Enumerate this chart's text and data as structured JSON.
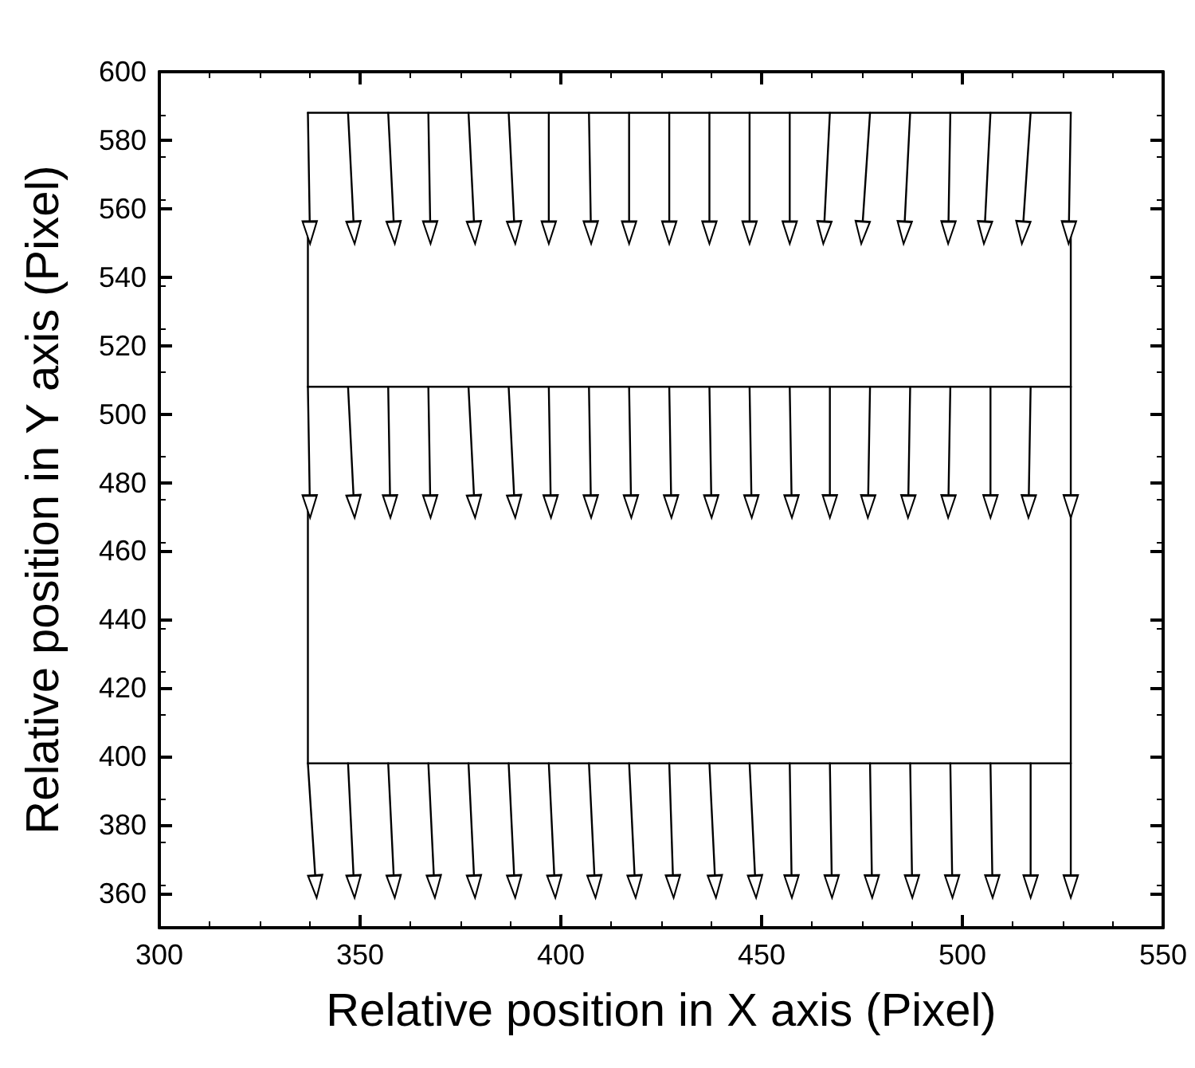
{
  "chart_data": {
    "type": "line",
    "xlabel": "Relative position in X axis (Pixel)",
    "ylabel": "Relative position in Y axis (Pixel)",
    "xlim": [
      300,
      550
    ],
    "xticks": [
      300,
      350,
      400,
      450,
      500,
      550
    ],
    "ylim": [
      350,
      600
    ],
    "yticks": [
      360,
      380,
      400,
      420,
      440,
      460,
      480,
      500,
      520,
      540,
      560,
      580,
      600
    ],
    "grid": false,
    "color": "#000000",
    "line_style": "solid",
    "series": [
      {
        "x": [
          337,
          527
        ],
        "values": [
          588,
          588
        ]
      },
      {
        "x": [
          337,
          527
        ],
        "values": [
          508,
          508
        ]
      },
      {
        "x": [
          337,
          527
        ],
        "values": [
          398,
          398
        ]
      },
      {
        "x": [
          337,
          337.5
        ],
        "values": [
          588,
          553
        ],
        "marker": "triangle"
      },
      {
        "x": [
          347,
          348.5
        ],
        "values": [
          588,
          553
        ],
        "marker": "triangle"
      },
      {
        "x": [
          357,
          358.5
        ],
        "values": [
          588,
          553
        ],
        "marker": "triangle"
      },
      {
        "x": [
          367,
          367.5
        ],
        "values": [
          588,
          553
        ],
        "marker": "triangle"
      },
      {
        "x": [
          377,
          378.5
        ],
        "values": [
          588,
          553
        ],
        "marker": "triangle"
      },
      {
        "x": [
          387,
          388.5
        ],
        "values": [
          588,
          553
        ],
        "marker": "triangle"
      },
      {
        "x": [
          397,
          397
        ],
        "values": [
          588,
          553
        ],
        "marker": "triangle"
      },
      {
        "x": [
          407,
          407.5
        ],
        "values": [
          588,
          553
        ],
        "marker": "triangle"
      },
      {
        "x": [
          417,
          417
        ],
        "values": [
          588,
          553
        ],
        "marker": "triangle"
      },
      {
        "x": [
          427,
          427
        ],
        "values": [
          588,
          553
        ],
        "marker": "triangle"
      },
      {
        "x": [
          437,
          437
        ],
        "values": [
          588,
          553
        ],
        "marker": "triangle"
      },
      {
        "x": [
          447,
          447
        ],
        "values": [
          588,
          553
        ],
        "marker": "triangle"
      },
      {
        "x": [
          457,
          457
        ],
        "values": [
          588,
          553
        ],
        "marker": "triangle"
      },
      {
        "x": [
          467,
          465.5
        ],
        "values": [
          588,
          553
        ],
        "marker": "triangle"
      },
      {
        "x": [
          477,
          475
        ],
        "values": [
          588,
          553
        ],
        "marker": "triangle"
      },
      {
        "x": [
          487,
          485.5
        ],
        "values": [
          588,
          553
        ],
        "marker": "triangle"
      },
      {
        "x": [
          497,
          496.5
        ],
        "values": [
          588,
          553
        ],
        "marker": "triangle"
      },
      {
        "x": [
          507,
          505.5
        ],
        "values": [
          588,
          553
        ],
        "marker": "triangle"
      },
      {
        "x": [
          517,
          515
        ],
        "values": [
          588,
          553
        ],
        "marker": "triangle"
      },
      {
        "x": [
          527,
          526.5
        ],
        "values": [
          588,
          553
        ],
        "marker": "triangle"
      },
      {
        "x": [
          337,
          337.5
        ],
        "values": [
          508,
          473
        ],
        "marker": "triangle"
      },
      {
        "x": [
          347,
          348.5
        ],
        "values": [
          508,
          473
        ],
        "marker": "triangle"
      },
      {
        "x": [
          357,
          357.5
        ],
        "values": [
          508,
          473
        ],
        "marker": "triangle"
      },
      {
        "x": [
          367,
          367.5
        ],
        "values": [
          508,
          473
        ],
        "marker": "triangle"
      },
      {
        "x": [
          377,
          378.5
        ],
        "values": [
          508,
          473
        ],
        "marker": "triangle"
      },
      {
        "x": [
          387,
          388.5
        ],
        "values": [
          508,
          473
        ],
        "marker": "triangle"
      },
      {
        "x": [
          397,
          397.5
        ],
        "values": [
          508,
          473
        ],
        "marker": "triangle"
      },
      {
        "x": [
          407,
          407.5
        ],
        "values": [
          508,
          473
        ],
        "marker": "triangle"
      },
      {
        "x": [
          417,
          417.5
        ],
        "values": [
          508,
          473
        ],
        "marker": "triangle"
      },
      {
        "x": [
          427,
          427.5
        ],
        "values": [
          508,
          473
        ],
        "marker": "triangle"
      },
      {
        "x": [
          437,
          437.5
        ],
        "values": [
          508,
          473
        ],
        "marker": "triangle"
      },
      {
        "x": [
          447,
          447.5
        ],
        "values": [
          508,
          473
        ],
        "marker": "triangle"
      },
      {
        "x": [
          457,
          457.5
        ],
        "values": [
          508,
          473
        ],
        "marker": "triangle"
      },
      {
        "x": [
          467,
          467
        ],
        "values": [
          508,
          473
        ],
        "marker": "triangle"
      },
      {
        "x": [
          477,
          476.5
        ],
        "values": [
          508,
          473
        ],
        "marker": "triangle"
      },
      {
        "x": [
          487,
          486.5
        ],
        "values": [
          508,
          473
        ],
        "marker": "triangle"
      },
      {
        "x": [
          497,
          496.5
        ],
        "values": [
          508,
          473
        ],
        "marker": "triangle"
      },
      {
        "x": [
          507,
          507
        ],
        "values": [
          508,
          473
        ],
        "marker": "triangle"
      },
      {
        "x": [
          517,
          516.5
        ],
        "values": [
          508,
          473
        ],
        "marker": "triangle"
      },
      {
        "x": [
          527,
          527
        ],
        "values": [
          508,
          473
        ],
        "marker": "triangle"
      },
      {
        "x": [
          337,
          339
        ],
        "values": [
          398,
          362
        ],
        "marker": "triangle"
      },
      {
        "x": [
          347,
          348.5
        ],
        "values": [
          398,
          362
        ],
        "marker": "triangle"
      },
      {
        "x": [
          357,
          358.5
        ],
        "values": [
          398,
          362
        ],
        "marker": "triangle"
      },
      {
        "x": [
          367,
          368.5
        ],
        "values": [
          398,
          362
        ],
        "marker": "triangle"
      },
      {
        "x": [
          377,
          378.5
        ],
        "values": [
          398,
          362
        ],
        "marker": "triangle"
      },
      {
        "x": [
          387,
          388.5
        ],
        "values": [
          398,
          362
        ],
        "marker": "triangle"
      },
      {
        "x": [
          397,
          398.5
        ],
        "values": [
          398,
          362
        ],
        "marker": "triangle"
      },
      {
        "x": [
          407,
          408.5
        ],
        "values": [
          398,
          362
        ],
        "marker": "triangle"
      },
      {
        "x": [
          417,
          418.5
        ],
        "values": [
          398,
          362
        ],
        "marker": "triangle"
      },
      {
        "x": [
          427,
          428
        ],
        "values": [
          398,
          362
        ],
        "marker": "triangle"
      },
      {
        "x": [
          437,
          438.5
        ],
        "values": [
          398,
          362
        ],
        "marker": "triangle"
      },
      {
        "x": [
          447,
          448.5
        ],
        "values": [
          398,
          362
        ],
        "marker": "triangle"
      },
      {
        "x": [
          457,
          457.5
        ],
        "values": [
          398,
          362
        ],
        "marker": "triangle"
      },
      {
        "x": [
          467,
          467.5
        ],
        "values": [
          398,
          362
        ],
        "marker": "triangle"
      },
      {
        "x": [
          477,
          477.5
        ],
        "values": [
          398,
          362
        ],
        "marker": "triangle"
      },
      {
        "x": [
          487,
          487.5
        ],
        "values": [
          398,
          362
        ],
        "marker": "triangle"
      },
      {
        "x": [
          497,
          497.5
        ],
        "values": [
          398,
          362
        ],
        "marker": "triangle"
      },
      {
        "x": [
          507,
          507.5
        ],
        "values": [
          398,
          362
        ],
        "marker": "triangle"
      },
      {
        "x": [
          517,
          517
        ],
        "values": [
          398,
          362
        ],
        "marker": "triangle"
      },
      {
        "x": [
          527,
          527
        ],
        "values": [
          398,
          362
        ],
        "marker": "triangle"
      },
      {
        "x": [
          337,
          337
        ],
        "values": [
          553,
          508
        ]
      },
      {
        "x": [
          337,
          337
        ],
        "values": [
          473,
          398
        ]
      },
      {
        "x": [
          527,
          527
        ],
        "values": [
          553,
          508
        ]
      },
      {
        "x": [
          527,
          527
        ],
        "values": [
          473,
          398
        ]
      }
    ]
  }
}
